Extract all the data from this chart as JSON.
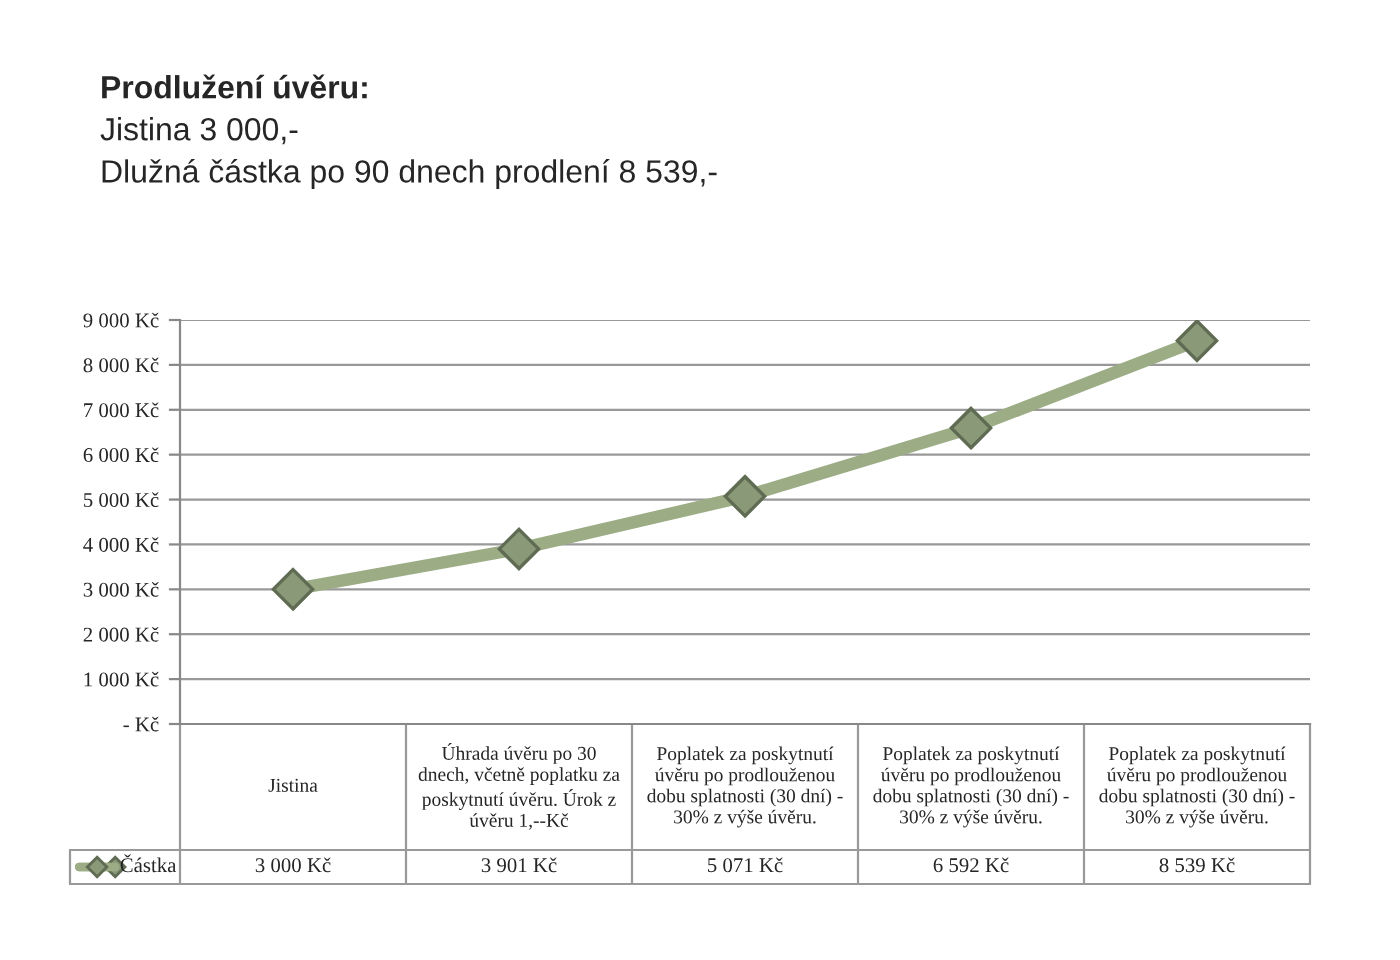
{
  "chart_data": {
    "type": "line",
    "title": "Prodlužení úvěru:",
    "subtitle": "Jistina 3 000,-",
    "annotations": [
      "Dlužná částka po 90 dnech prodlení 8 539,-"
    ],
    "categories": [
      "Jistina",
      "Úhrada úvěru po 30 dnech, včetně poplatku za poskytnutí úvěru. Úrok z úvěru 1,--Kč",
      "Poplatek za poskytnutí úvěru po prodlouženou dobu splatnosti (30 dní) - 30% z výše úvěru.",
      "Poplatek za poskytnutí úvěru po prodlouženou dobu splatnosti (30 dní) - 30% z výše úvěru.",
      "Poplatek za poskytnutí úvěru po prodlouženou dobu splatnosti (30 dní) - 30% z výše úvěru."
    ],
    "series": [
      {
        "name": "Částka",
        "color": "#9cad86",
        "values": [
          3000,
          3901,
          5071,
          6592,
          8539
        ],
        "value_labels": [
          "3 000 Kč",
          "3 901 Kč",
          "5 071 Kč",
          "6 592 Kč",
          "8 539 Kč"
        ]
      }
    ],
    "ylim": [
      0,
      9000
    ],
    "yticks": [
      {
        "value": 0,
        "label": "- Kč"
      },
      {
        "value": 1000,
        "label": "1 000 Kč"
      },
      {
        "value": 2000,
        "label": "2 000 Kč"
      },
      {
        "value": 3000,
        "label": "3 000 Kč"
      },
      {
        "value": 4000,
        "label": "4 000 Kč"
      },
      {
        "value": 5000,
        "label": "5 000 Kč"
      },
      {
        "value": 6000,
        "label": "6 000 Kč"
      },
      {
        "value": 7000,
        "label": "7 000 Kč"
      },
      {
        "value": 8000,
        "label": "8 000 Kč"
      },
      {
        "value": 9000,
        "label": "9 000 Kč"
      }
    ],
    "grid": "y",
    "legend": "bottom",
    "marker": "diamond",
    "line_style": "solid"
  }
}
